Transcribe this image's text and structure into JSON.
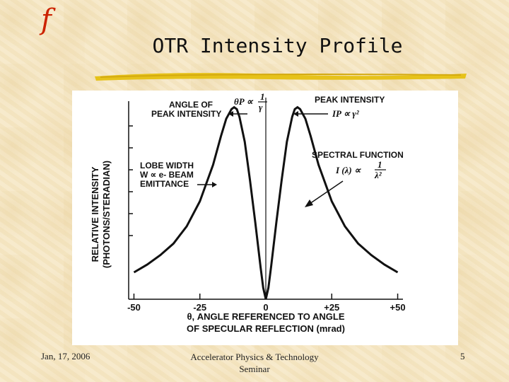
{
  "slide": {
    "logo": "f",
    "title": "OTR Intensity Profile",
    "footer_date": "Jan, 17, 2006",
    "footer_center_line1": "Accelerator Physics & Technology",
    "footer_center_line2": "Seminar",
    "page_number": "5"
  },
  "colors": {
    "background": "#f6e8c6",
    "title_underline": "#e6c21a",
    "logo": "#cc2200",
    "curve": "#111111"
  },
  "chart_data": {
    "type": "line",
    "xlabel_line1": "θ, ANGLE REFERENCED TO ANGLE",
    "xlabel_line2": "OF SPECULAR REFLECTION (mrad)",
    "ylabel_line1": "RELATIVE INTENSITY",
    "ylabel_line2": "(PHOTONS/STERADIAN)",
    "x_tick_labels": [
      "-50",
      "-25",
      "0",
      "+25",
      "+50"
    ],
    "x_ticks": [
      -50,
      -25,
      0,
      25,
      50
    ],
    "xlim": [
      -52,
      52
    ],
    "ylim": [
      0,
      1.05
    ],
    "x": [
      -50,
      -45,
      -40,
      -35,
      -30,
      -25,
      -20,
      -17,
      -15,
      -13,
      -12,
      -11,
      -10,
      -8,
      -6,
      -4,
      -2,
      -1,
      0,
      1,
      2,
      4,
      6,
      8,
      10,
      11,
      12,
      13,
      15,
      17,
      20,
      25,
      30,
      35,
      40,
      45,
      50
    ],
    "y": [
      0.14,
      0.18,
      0.23,
      0.29,
      0.38,
      0.51,
      0.7,
      0.85,
      0.94,
      0.99,
      1.0,
      0.99,
      0.95,
      0.82,
      0.62,
      0.4,
      0.17,
      0.06,
      0.0,
      0.06,
      0.17,
      0.4,
      0.62,
      0.82,
      0.95,
      0.99,
      1.0,
      0.99,
      0.94,
      0.85,
      0.7,
      0.51,
      0.38,
      0.29,
      0.23,
      0.18,
      0.14
    ],
    "annotations": {
      "angle_peak_line1": "ANGLE OF",
      "angle_peak_line2": "PEAK INTENSITY",
      "theta_formula": "θP ∝",
      "frac_num": "1",
      "frac_den": "γ",
      "peak_intensity": "PEAK INTENSITY",
      "peak_formula": "IP ∝ γ²",
      "lobe_line1": "LOBE WIDTH",
      "lobe_line2": "W ∝ e- BEAM",
      "lobe_line3": "EMITTANCE",
      "spectral": "SPECTRAL FUNCTION",
      "spectral_formula": "I (λ) ∝",
      "spectral_num": "1",
      "spectral_den": "λ²"
    }
  }
}
